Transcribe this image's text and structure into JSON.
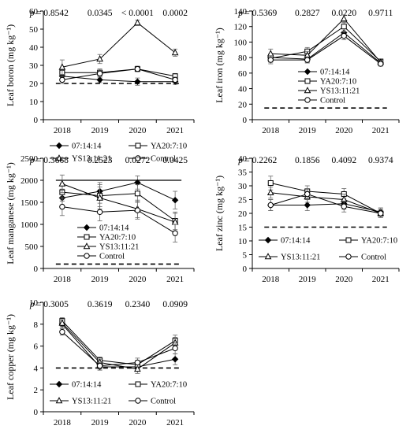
{
  "chart_data": [
    {
      "type": "line",
      "ylabel": "Leaf boron (mg kg⁻¹)",
      "ylim": [
        0,
        60
      ],
      "yticks": [
        "0",
        "10",
        "20",
        "30",
        "40",
        "50",
        "60"
      ],
      "categories": [
        "2018",
        "2019",
        "2020",
        "2021"
      ],
      "p_label": "p",
      "p_values": [
        "= 0.8542",
        "0.0345",
        "< 0.0001",
        "0.0002"
      ],
      "legend_placement": "bottom",
      "reference_line": {
        "style": "dashed",
        "value": 20
      },
      "series": [
        {
          "name": "07:14:14",
          "marker": "diamond",
          "values": [
            24,
            22,
            21,
            21
          ],
          "errors": [
            1.5,
            1.5,
            2,
            1.5
          ]
        },
        {
          "name": "YA20:7:10",
          "marker": "square",
          "values": [
            26,
            26,
            28,
            24
          ],
          "errors": [
            2,
            2,
            1.5,
            1.5
          ]
        },
        {
          "name": "YS13:11:21",
          "marker": "triangle",
          "values": [
            29,
            33.5,
            53.5,
            37
          ],
          "errors": [
            4,
            2.5,
            1.5,
            2
          ]
        },
        {
          "name": "Control",
          "marker": "circle",
          "values": [
            22,
            25.5,
            28,
            22
          ],
          "errors": [
            2,
            2,
            1.5,
            1.5
          ]
        }
      ]
    },
    {
      "type": "line",
      "ylabel": "Leaf iron (mg kg⁻¹)",
      "ylim": [
        0,
        140
      ],
      "yticks": [
        "0",
        "20",
        "40",
        "60",
        "80",
        "100",
        "120",
        "140"
      ],
      "categories": [
        "2018",
        "2019",
        "2020",
        "2021"
      ],
      "p_label": "p",
      "p_values": [
        "= 0.5369",
        "0.2827",
        "0.0220",
        "0.9711"
      ],
      "legend_placement": "center-right",
      "reference_line": {
        "style": "dashed",
        "value": 15
      },
      "series": [
        {
          "name": "07:14:14",
          "marker": "diamond",
          "values": [
            80,
            78,
            112,
            73
          ],
          "errors": [
            5,
            4,
            5,
            3
          ]
        },
        {
          "name": "YA20:7:10",
          "marker": "square",
          "values": [
            79,
            88,
            120,
            75
          ],
          "errors": [
            5,
            5,
            6,
            3
          ]
        },
        {
          "name": "YS13:11:21",
          "marker": "triangle",
          "values": [
            85,
            83,
            130,
            74
          ],
          "errors": [
            6,
            5,
            5,
            3
          ]
        },
        {
          "name": "Control",
          "marker": "circle",
          "values": [
            77,
            77,
            108,
            72
          ],
          "errors": [
            5,
            4,
            5,
            3
          ]
        }
      ]
    },
    {
      "type": "line",
      "ylabel": "Leaf manganese (mg kg⁻¹)",
      "ylim": [
        0,
        2500
      ],
      "yticks": [
        "0",
        "500",
        "1000",
        "1500",
        "2000",
        "2500"
      ],
      "categories": [
        "2018",
        "2019",
        "2020",
        "2021"
      ],
      "p_label": "p",
      "p_values": [
        "= 0.3668",
        "0.2523",
        "0.0272",
        "0.0425"
      ],
      "legend_placement": "bottom-right",
      "reference_line": {
        "style": "dashed",
        "value": 100
      },
      "upper_line": {
        "style": "solid",
        "value": 2000
      },
      "series": [
        {
          "name": "07:14:14",
          "marker": "diamond",
          "values": [
            1600,
            1750,
            1950,
            1550
          ],
          "errors": [
            200,
            200,
            150,
            200
          ]
        },
        {
          "name": "YA20:7:10",
          "marker": "square",
          "values": [
            1730,
            1650,
            1700,
            1080
          ],
          "errors": [
            200,
            250,
            200,
            200
          ]
        },
        {
          "name": "YS13:11:21",
          "marker": "triangle",
          "values": [
            1920,
            1600,
            1350,
            1050
          ],
          "errors": [
            200,
            250,
            200,
            200
          ]
        },
        {
          "name": "Control",
          "marker": "circle",
          "values": [
            1400,
            1280,
            1320,
            800
          ],
          "errors": [
            200,
            200,
            200,
            200
          ]
        }
      ]
    },
    {
      "type": "line",
      "ylabel": "Leaf zinc (mg kg⁻¹)",
      "ylim": [
        0,
        40
      ],
      "yticks": [
        "0",
        "5",
        "10",
        "15",
        "20",
        "25",
        "30",
        "35",
        "40"
      ],
      "categories": [
        "2018",
        "2019",
        "2020",
        "2021"
      ],
      "p_label": "p",
      "p_values": [
        "= 0.2262",
        "0.1856",
        "0.4092",
        "0.9374"
      ],
      "legend_placement": "bottom",
      "reference_line": {
        "style": "dashed",
        "value": 15
      },
      "series": [
        {
          "name": "07:14:14",
          "marker": "diamond",
          "values": [
            23,
            23,
            23.5,
            20.5
          ],
          "errors": [
            2,
            2,
            2,
            1.5
          ]
        },
        {
          "name": "YA20:7:10",
          "marker": "square",
          "values": [
            31,
            28,
            27,
            20
          ],
          "errors": [
            2.5,
            2,
            2,
            1.5
          ]
        },
        {
          "name": "YS13:11:21",
          "marker": "triangle",
          "values": [
            27.5,
            26,
            25,
            20
          ],
          "errors": [
            2,
            2,
            2,
            1.5
          ]
        },
        {
          "name": "Control",
          "marker": "circle",
          "values": [
            23,
            27,
            22.5,
            20
          ],
          "errors": [
            2,
            2,
            2,
            1.5
          ]
        }
      ]
    },
    {
      "type": "line",
      "ylabel": "Leaf copper (mg kg⁻¹)",
      "ylim": [
        0,
        10
      ],
      "yticks": [
        "0",
        "2",
        "4",
        "6",
        "8",
        "10"
      ],
      "categories": [
        "2018",
        "2019",
        "2020",
        "2021"
      ],
      "p_label": "p",
      "p_values": [
        "= 0.3005",
        "0.3619",
        "0.2340",
        "0.0909"
      ],
      "legend_placement": "bottom",
      "reference_line": {
        "style": "dashed",
        "value": 4
      },
      "series": [
        {
          "name": "07:14:14",
          "marker": "diamond",
          "values": [
            8.0,
            4.1,
            4.1,
            4.8
          ],
          "errors": [
            0.3,
            0.3,
            0.4,
            0.5
          ]
        },
        {
          "name": "YA20:7:10",
          "marker": "square",
          "values": [
            8.3,
            4.7,
            4.3,
            6.5
          ],
          "errors": [
            0.3,
            0.3,
            0.4,
            0.5
          ]
        },
        {
          "name": "YS13:11:21",
          "marker": "triangle",
          "values": [
            8.1,
            4.5,
            3.9,
            6.3
          ],
          "errors": [
            0.3,
            0.3,
            0.4,
            0.5
          ]
        },
        {
          "name": "Control",
          "marker": "circle",
          "values": [
            7.3,
            4.2,
            4.5,
            5.8
          ],
          "errors": [
            0.3,
            0.3,
            0.4,
            0.5
          ]
        }
      ]
    }
  ]
}
